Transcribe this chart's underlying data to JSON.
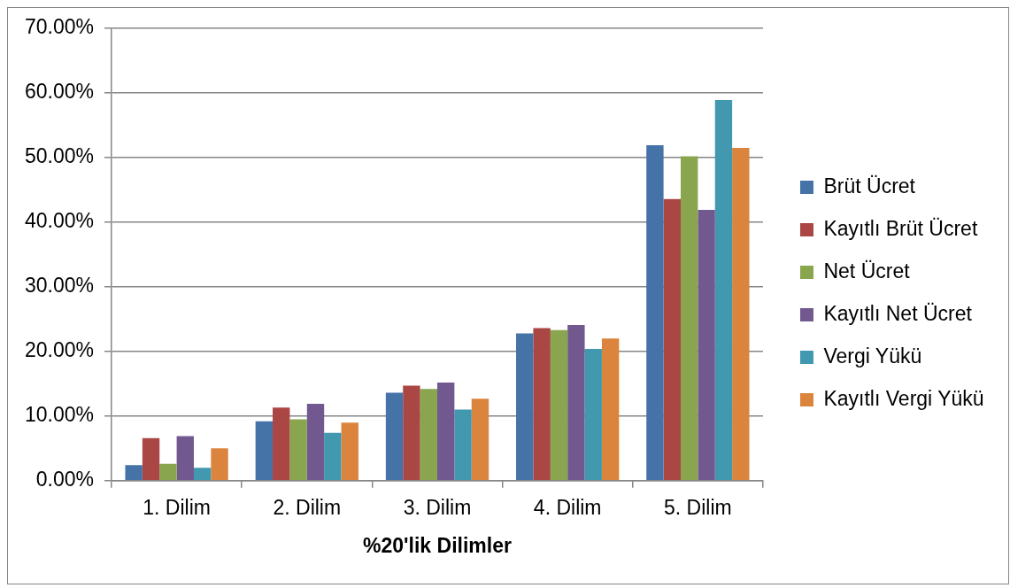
{
  "chart_data": {
    "type": "bar",
    "xlabel": "%20'lik Dilimler",
    "categories": [
      "1. Dilim",
      "2. Dilim",
      "3. Dilim",
      "4. Dilim",
      "5. Dilim"
    ],
    "series": [
      {
        "name": "Brüt Ücret",
        "color": "#4572a7",
        "values": [
          2.4,
          9.2,
          13.6,
          22.8,
          51.9
        ]
      },
      {
        "name": "Kayıtlı Brüt Ücret",
        "color": "#aa4643",
        "values": [
          6.6,
          11.3,
          14.7,
          23.6,
          43.6
        ]
      },
      {
        "name": "Net Ücret",
        "color": "#89a54e",
        "values": [
          2.6,
          9.5,
          14.2,
          23.3,
          50.2
        ]
      },
      {
        "name": "Kayıtlı Net Ücret",
        "color": "#71588f",
        "values": [
          6.9,
          11.9,
          15.2,
          24.1,
          41.9
        ]
      },
      {
        "name": "Vergi Yükü",
        "color": "#4198af",
        "values": [
          2.0,
          7.4,
          11.0,
          20.4,
          58.9
        ]
      },
      {
        "name": "Kayıtlı Vergi Yükü",
        "color": "#db843d",
        "values": [
          5.0,
          9.0,
          12.7,
          22.0,
          51.5
        ]
      }
    ],
    "ylim": [
      0,
      70
    ],
    "yticks": [
      {
        "value": 0,
        "label": "0.00%"
      },
      {
        "value": 10,
        "label": "10.00%"
      },
      {
        "value": 20,
        "label": "20.00%"
      },
      {
        "value": 30,
        "label": "30.00%"
      },
      {
        "value": 40,
        "label": "40.00%"
      },
      {
        "value": 50,
        "label": "50.00%"
      },
      {
        "value": 60,
        "label": "60.00%"
      },
      {
        "value": 70,
        "label": "70.00%"
      }
    ],
    "grid": "y",
    "legend": "right"
  }
}
